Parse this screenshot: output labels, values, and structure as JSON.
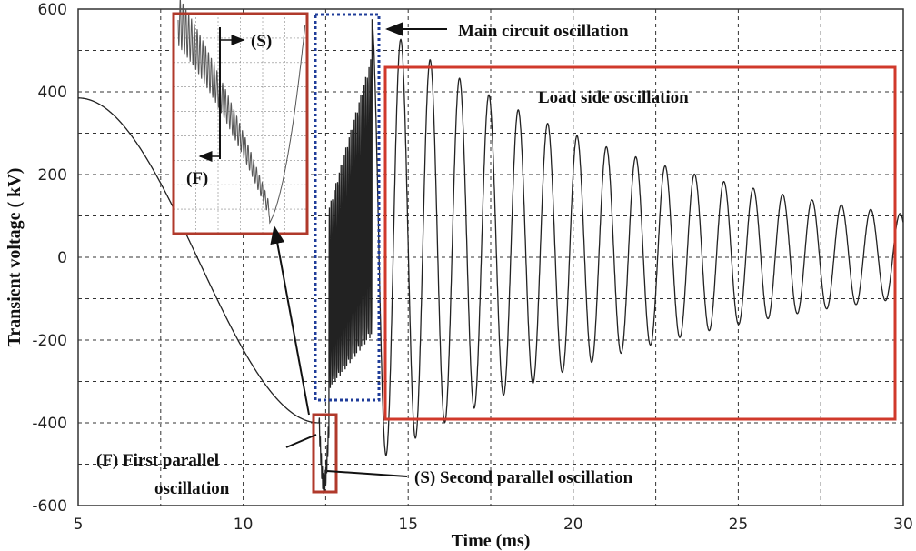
{
  "chart_data": {
    "type": "line",
    "xlabel": "Time (ms)",
    "ylabel": "Transient voltage ( kV)",
    "xlim": [
      5,
      30
    ],
    "ylim": [
      -600,
      600
    ],
    "xticks": [
      "5",
      "10",
      "15",
      "20",
      "25",
      "30"
    ],
    "yticks": [
      "600",
      "400",
      "200",
      "0",
      "-200",
      "-400",
      "-600"
    ],
    "grid": true,
    "series": [
      {
        "x": [
          5,
          6,
          7,
          8,
          9,
          10,
          11,
          11.5,
          12,
          12.3,
          12.45,
          12.6,
          13,
          13.5,
          13.8,
          14,
          14.1,
          14.5,
          15,
          15.5,
          16,
          17,
          18,
          19,
          20,
          21,
          22,
          23,
          24,
          25,
          26,
          27,
          28,
          29,
          30
        ],
        "y": [
          385,
          330,
          230,
          80,
          -60,
          -190,
          -300,
          -360,
          -400,
          -440,
          -560,
          -330,
          -250,
          330,
          540,
          -300,
          -520,
          480,
          -450,
          420,
          -400,
          330,
          -320,
          270,
          -260,
          220,
          -210,
          170,
          -160,
          120,
          -110,
          90,
          -80,
          60,
          60
        ]
      }
    ],
    "annotations": {
      "main_circuit": "Main circuit oscillation",
      "load_side": "Load side oscillation",
      "first_parallel_line1": "(F) First parallel",
      "first_parallel_line2": "oscillation",
      "second_parallel": "(S) Second parallel oscillation",
      "inset_s": "(S)",
      "inset_f": "(F)"
    },
    "colors": {
      "curve": "#222222",
      "red_box": "#d0392b",
      "blue_box": "#1f3c99"
    }
  }
}
